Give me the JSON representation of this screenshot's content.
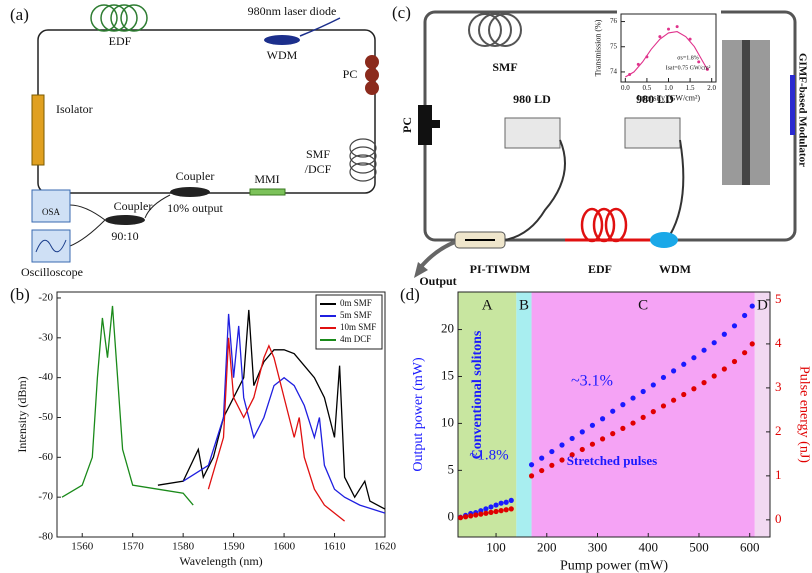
{
  "diagram_a": {
    "panel_label": "(a)",
    "edf": "EDF",
    "laser": "980nm laser diode",
    "wdm": "WDM",
    "pc": "PC",
    "isolator": "Isolator",
    "smf": "SMF",
    "dcf": "/DCF",
    "coupler1": "Coupler",
    "mmi": "MMI",
    "output": "10% output",
    "coupler2": "Coupler",
    "ratio": "90:10",
    "osa": "OSA",
    "oscilloscope": "Oscilloscope"
  },
  "diagram_c": {
    "panel_label": "(c)",
    "smf": "SMF",
    "pc": "PC",
    "ld1": "980 LD",
    "ld2": "980 LD",
    "pitiwdm": "PI-TIWDM",
    "edf": "EDF",
    "wdm": "WDM",
    "output": "Output",
    "modulator": "GIMF-based Modulator"
  },
  "chart_data": [
    {
      "type": "line",
      "panel_label": "(b)",
      "xlabel": "Wavelength (nm)",
      "ylabel": "Intensity (dBm)",
      "xlim": [
        1555,
        1620
      ],
      "ylim": [
        -80,
        -18.5
      ],
      "xticks": [
        1560,
        1570,
        1580,
        1590,
        1600,
        1610,
        1620
      ],
      "yticks": [
        -80,
        -70,
        -60,
        -50,
        -40,
        -30,
        -20
      ],
      "legend": "upper right",
      "series": [
        {
          "name": "0m SMF",
          "color": "#000000",
          "x": [
            1575,
            1580,
            1583,
            1584,
            1586,
            1588,
            1590,
            1592,
            1593,
            1594,
            1596,
            1598,
            1600,
            1602,
            1604,
            1606,
            1608,
            1610,
            1611,
            1612,
            1614,
            1616,
            1617,
            1620
          ],
          "values": [
            -67,
            -66,
            -58,
            -65,
            -60,
            -50,
            -45,
            -40,
            -23,
            -42,
            -36,
            -33,
            -33,
            -34,
            -37,
            -40,
            -45,
            -55,
            -37,
            -65,
            -70,
            -66,
            -71,
            -73
          ]
        },
        {
          "name": "5m SMF",
          "color": "#1f1fe0",
          "x": [
            1580,
            1585,
            1588,
            1589,
            1590,
            1591,
            1592,
            1594,
            1596,
            1598,
            1600,
            1602,
            1604,
            1606,
            1607,
            1608,
            1610,
            1612,
            1615,
            1620
          ],
          "values": [
            -66,
            -62,
            -50,
            -24,
            -40,
            -27,
            -45,
            -55,
            -50,
            -42,
            -40,
            -42,
            -47,
            -55,
            -50,
            -62,
            -68,
            -70,
            -72,
            -74
          ]
        },
        {
          "name": "10m SMF",
          "color": "#e01010",
          "x": [
            1585,
            1588,
            1589,
            1590,
            1592,
            1594,
            1596,
            1597,
            1598,
            1600,
            1602,
            1603,
            1604,
            1606,
            1608,
            1610,
            1612
          ],
          "values": [
            -68,
            -55,
            -30,
            -45,
            -50,
            -45,
            -35,
            -32,
            -35,
            -45,
            -55,
            -50,
            -60,
            -68,
            -72,
            -74,
            -76
          ]
        },
        {
          "name": "4m DCF",
          "color": "#1a8a1a",
          "x": [
            1556,
            1560,
            1562,
            1563,
            1564,
            1565,
            1566,
            1567,
            1568,
            1570,
            1575,
            1580,
            1582
          ],
          "values": [
            -70,
            -67,
            -60,
            -40,
            -25,
            -35,
            -22,
            -40,
            -58,
            -67,
            -68,
            -69,
            -72
          ]
        }
      ]
    },
    {
      "type": "scatter",
      "panel_label": "(d)",
      "xlabel": "Pump power (mW)",
      "ylabel": "Output power (mW)",
      "y2label": "Pulse energy (nJ)",
      "ylabel_color": "#1a1aff",
      "y2label_color": "#e00000",
      "xlim": [
        25,
        640
      ],
      "ylim": [
        -2.1,
        24
      ],
      "y2lim": [
        -0.39,
        5.18
      ],
      "xticks": [
        100,
        200,
        300,
        400,
        500,
        600
      ],
      "yticks": [
        0,
        5,
        10,
        15,
        20
      ],
      "y2ticks": [
        0,
        1,
        2,
        3,
        4,
        5
      ],
      "regions": [
        {
          "label": "A",
          "range": [
            25,
            140
          ],
          "color": "#c8e6a0"
        },
        {
          "label": "B",
          "range": [
            140,
            170
          ],
          "color": "#a8eef0"
        },
        {
          "label": "C",
          "range": [
            170,
            610
          ],
          "color": "#f5a3f5"
        },
        {
          "label": "D",
          "range": [
            610,
            640
          ],
          "color": "#f2d9f2"
        }
      ],
      "annotations": [
        "Conventional solitons",
        "~1.8%",
        "~3.1%",
        "Stretched pulses"
      ],
      "annotation_color": "#1a1aff",
      "x": [
        30,
        40,
        50,
        60,
        70,
        80,
        90,
        100,
        110,
        120,
        130,
        150,
        170,
        190,
        210,
        230,
        250,
        270,
        290,
        310,
        330,
        350,
        370,
        390,
        410,
        430,
        450,
        470,
        490,
        510,
        530,
        550,
        570,
        590,
        605
      ],
      "series": [
        {
          "color": "#1a1aff",
          "values": [
            0.0,
            0.2,
            0.4,
            0.5,
            0.7,
            0.9,
            1.1,
            1.3,
            1.5,
            1.6,
            1.8,
            null,
            5.6,
            6.3,
            7.0,
            7.7,
            8.4,
            9.1,
            9.8,
            10.5,
            11.3,
            12.0,
            12.7,
            13.4,
            14.1,
            14.9,
            15.6,
            16.3,
            17.0,
            17.8,
            18.6,
            19.5,
            20.4,
            21.5,
            22.5
          ]
        },
        {
          "color": "#e00000",
          "axis": "y2",
          "values": [
            0.05,
            0.07,
            0.09,
            0.11,
            0.13,
            0.15,
            0.17,
            0.19,
            0.21,
            0.23,
            0.25,
            null,
            1.0,
            1.12,
            1.24,
            1.36,
            1.48,
            1.6,
            1.72,
            1.84,
            1.96,
            2.08,
            2.2,
            2.33,
            2.46,
            2.59,
            2.72,
            2.85,
            2.98,
            3.12,
            3.27,
            3.43,
            3.6,
            3.8,
            4.0
          ]
        }
      ]
    },
    {
      "type": "scatter",
      "xlabel": "Intensity (GW/cm²)",
      "ylabel": "Transmission (%)",
      "xlim": [
        -0.1,
        2.1
      ],
      "ylim": [
        73.6,
        76.3
      ],
      "xticks": [
        {
          "value": 0,
          "label": "0.0"
        },
        {
          "value": 0.5,
          "label": "0.5"
        },
        {
          "value": 1,
          "label": "1.0"
        },
        {
          "value": 1.5,
          "label": "1.5"
        },
        {
          "value": 2,
          "label": "2.0"
        }
      ],
      "yticks": [
        74,
        75,
        76
      ],
      "annotations": [
        "σs=1.8%",
        "Isat=0.75 GW/cm²"
      ],
      "annotation_color": "#111111",
      "series": [
        {
          "color": "#e0338c",
          "mode": "markers",
          "x": [
            0.1,
            0.3,
            0.5,
            0.8,
            1.0,
            1.2,
            1.5,
            1.7,
            1.9
          ],
          "values": [
            73.9,
            74.3,
            74.6,
            75.4,
            75.7,
            75.8,
            75.3,
            74.4,
            74.1
          ]
        },
        {
          "color": "#e0338c",
          "mode": "lines",
          "x": [
            0,
            0.2,
            0.4,
            0.6,
            0.8,
            1.0,
            1.2,
            1.4,
            1.6,
            1.8,
            1.9
          ],
          "values": [
            73.8,
            74.0,
            74.4,
            74.9,
            75.3,
            75.55,
            75.6,
            75.4,
            75.0,
            74.4,
            74.1
          ]
        }
      ]
    }
  ]
}
